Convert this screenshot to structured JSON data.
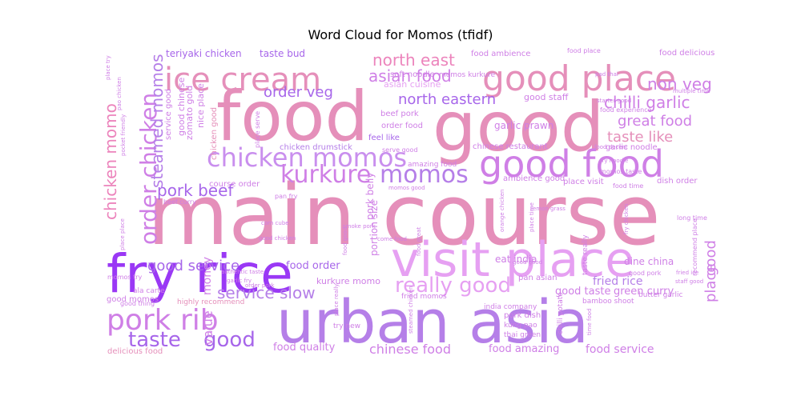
{
  "chart_data": {
    "type": "wordcloud",
    "title": "Word Cloud for Momos (tfidf)",
    "colors": [
      "#e58fba",
      "#cf7fe6",
      "#a766ea",
      "#9a38f5",
      "#c98fee",
      "#e6a0f2",
      "#ec84bc",
      "#b57fe8"
    ],
    "words": [
      {
        "text": "main course",
        "size": 104,
        "color": "#e58fba"
      },
      {
        "text": "food",
        "size": 86,
        "color": "#e58fba"
      },
      {
        "text": "good",
        "size": 86,
        "color": "#e58fba"
      },
      {
        "text": "urban asia",
        "size": 74,
        "color": "#b57fe8"
      },
      {
        "text": "fry rice",
        "size": 66,
        "color": "#9a38f5"
      },
      {
        "text": "visit place",
        "size": 60,
        "color": "#e6a0f2"
      },
      {
        "text": "good food",
        "size": 46,
        "color": "#cf7fe6"
      },
      {
        "text": "good place",
        "size": 44,
        "color": "#e58fba"
      },
      {
        "text": "ice cream",
        "size": 40,
        "color": "#e58fba"
      },
      {
        "text": "pork rib",
        "size": 36,
        "color": "#cf7fe6"
      },
      {
        "text": "chicken momos",
        "size": 32,
        "color": "#c98fee"
      },
      {
        "text": "kurkure",
        "size": 30,
        "color": "#cf7fe6"
      },
      {
        "text": "momos",
        "size": 30,
        "color": "#b57fe8"
      },
      {
        "text": "order chicken",
        "size": 28,
        "color": "#cf7fe6"
      },
      {
        "text": "really good",
        "size": 26,
        "color": "#e6a0f2"
      },
      {
        "text": "taste",
        "size": 26,
        "color": "#a766ea"
      },
      {
        "text": "good",
        "size": 26,
        "color": "#a766ea"
      },
      {
        "text": "chicken momo",
        "size": 20,
        "color": "#ec84bc"
      },
      {
        "text": "steamed momos",
        "size": 20,
        "color": "#b57fe8"
      },
      {
        "text": "pork beef",
        "size": 20,
        "color": "#a766ea"
      },
      {
        "text": "service slow",
        "size": 20,
        "color": "#b57fe8"
      },
      {
        "text": "north east",
        "size": 20,
        "color": "#ec84bc"
      },
      {
        "text": "asian food",
        "size": 20,
        "color": "#cf7fe6"
      },
      {
        "text": "north eastern",
        "size": 18,
        "color": "#a766ea"
      },
      {
        "text": "non veg",
        "size": 20,
        "color": "#cf7fe6"
      },
      {
        "text": "chilli garlic",
        "size": 20,
        "color": "#cf7fe6"
      },
      {
        "text": "great food",
        "size": 18,
        "color": "#cf7fe6"
      },
      {
        "text": "taste like",
        "size": 18,
        "color": "#e58fba"
      },
      {
        "text": "good service",
        "size": 18,
        "color": "#a766ea"
      },
      {
        "text": "order veg",
        "size": 18,
        "color": "#a766ea"
      },
      {
        "text": "chinese food",
        "size": 16,
        "color": "#cf7fe6"
      },
      {
        "text": "place",
        "size": 18,
        "color": "#cf7fe6"
      },
      {
        "text": "good",
        "size": 18,
        "color": "#cf7fe6"
      },
      {
        "text": "value",
        "size": 16,
        "color": "#cf7fe6"
      },
      {
        "text": "money",
        "size": 14,
        "color": "#cf7fe6"
      },
      {
        "text": "food service",
        "size": 14,
        "color": "#cf7fe6"
      },
      {
        "text": "food quality",
        "size": 13,
        "color": "#cf7fe6"
      },
      {
        "text": "food amazing",
        "size": 13,
        "color": "#cf7fe6"
      },
      {
        "text": "fried rice",
        "size": 14,
        "color": "#b57fe8"
      },
      {
        "text": "good taste",
        "size": 13,
        "color": "#cf7fe6"
      },
      {
        "text": "green curry",
        "size": 13,
        "color": "#cf7fe6"
      },
      {
        "text": "food order",
        "size": 13,
        "color": "#a766ea"
      },
      {
        "text": "teriyaki chicken",
        "size": 12,
        "color": "#a766ea"
      },
      {
        "text": "taste bud",
        "size": 12,
        "color": "#a766ea"
      },
      {
        "text": "garlic prawn",
        "size": 12,
        "color": "#cf7fe6"
      },
      {
        "text": "good staff",
        "size": 11,
        "color": "#cf7fe6"
      },
      {
        "text": "asian cuisine",
        "size": 11,
        "color": "#e6a0f2"
      },
      {
        "text": "food ambience",
        "size": 10,
        "color": "#cf7fe6"
      },
      {
        "text": "food delicious",
        "size": 10,
        "color": "#cf7fe6"
      },
      {
        "text": "zomato gold",
        "size": 11,
        "color": "#cf7fe6"
      },
      {
        "text": "nice place",
        "size": 11,
        "color": "#cf7fe6"
      },
      {
        "text": "good chinese",
        "size": 11,
        "color": "#cf7fe6"
      },
      {
        "text": "service good",
        "size": 10,
        "color": "#cf7fe6"
      },
      {
        "text": "chicken good",
        "size": 10,
        "color": "#e58fba"
      },
      {
        "text": "chicken drumstick",
        "size": 10,
        "color": "#b57fe8"
      },
      {
        "text": "feel like",
        "size": 10,
        "color": "#a766ea"
      },
      {
        "text": "chinese restaurant",
        "size": 10,
        "color": "#cf7fe6"
      },
      {
        "text": "amazing food",
        "size": 9,
        "color": "#cf7fe6"
      },
      {
        "text": "ambience good",
        "size": 10,
        "color": "#cf7fe6"
      },
      {
        "text": "place visit",
        "size": 10,
        "color": "#cf7fe6"
      },
      {
        "text": "dish order",
        "size": 10,
        "color": "#cf7fe6"
      },
      {
        "text": "garlic noodle",
        "size": 10,
        "color": "#cf7fe6"
      },
      {
        "text": "course order",
        "size": 10,
        "color": "#cf7fe6"
      },
      {
        "text": "portion size",
        "size": 12,
        "color": "#cf7fe6"
      },
      {
        "text": "pork belly",
        "size": 12,
        "color": "#cf7fe6"
      },
      {
        "text": "eat india",
        "size": 12,
        "color": "#cf7fe6"
      },
      {
        "text": "dine china",
        "size": 12,
        "color": "#cf7fe6"
      },
      {
        "text": "kurkure momo",
        "size": 11,
        "color": "#cf7fe6"
      },
      {
        "text": "pan asian",
        "size": 10,
        "color": "#cf7fe6"
      },
      {
        "text": "good momos",
        "size": 10,
        "color": "#cf7fe6"
      },
      {
        "text": "pork dish",
        "size": 10,
        "color": "#cf7fe6"
      },
      {
        "text": "india company",
        "size": 9,
        "color": "#cf7fe6"
      },
      {
        "text": "chilli potato",
        "size": 9,
        "color": "#cf7fe6"
      },
      {
        "text": "butter garlic",
        "size": 9,
        "color": "#cf7fe6"
      },
      {
        "text": "bamboo shoot",
        "size": 9,
        "color": "#cf7fe6"
      },
      {
        "text": "delicious food",
        "size": 10,
        "color": "#e58fba"
      },
      {
        "text": "highly recommend",
        "size": 9,
        "color": "#e58fba"
      },
      {
        "text": "good thing",
        "size": 8,
        "color": "#cf7fe6"
      },
      {
        "text": "ala carte",
        "size": 9,
        "color": "#cf7fe6"
      },
      {
        "text": "momos try",
        "size": 8,
        "color": "#cf7fe6"
      },
      {
        "text": "try new",
        "size": 9,
        "color": "#cf7fe6"
      },
      {
        "text": "kung pao",
        "size": 9,
        "color": "#cf7fe6"
      },
      {
        "text": "thai green",
        "size": 9,
        "color": "#cf7fe6"
      },
      {
        "text": "fried momos",
        "size": 9,
        "color": "#cf7fe6"
      },
      {
        "text": "order food",
        "size": 10,
        "color": "#cf7fe6"
      },
      {
        "text": "beef pork",
        "size": 10,
        "color": "#cf7fe6"
      },
      {
        "text": "soft noodle",
        "size": 10,
        "color": "#cf7fe6"
      },
      {
        "text": "momos kurkure",
        "size": 9,
        "color": "#cf7fe6"
      },
      {
        "text": "food place",
        "size": 8,
        "color": "#cf7fe6"
      },
      {
        "text": "food experience",
        "size": 8,
        "color": "#cf7fe6"
      },
      {
        "text": "momos taste",
        "size": 8,
        "color": "#cf7fe6"
      },
      {
        "text": "food time",
        "size": 8,
        "color": "#cf7fe6"
      },
      {
        "text": "long time",
        "size": 8,
        "color": "#cf7fe6"
      },
      {
        "text": "recommend place",
        "size": 8,
        "color": "#cf7fe6"
      },
      {
        "text": "good pork",
        "size": 8,
        "color": "#cf7fe6"
      },
      {
        "text": "place serve",
        "size": 8,
        "color": "#cf7fe6"
      },
      {
        "text": "serve good",
        "size": 8,
        "color": "#cf7fe6"
      },
      {
        "text": "pan fry",
        "size": 8,
        "color": "#cf7fe6"
      },
      {
        "text": "beef curry",
        "size": 8,
        "color": "#cf7fe6"
      },
      {
        "text": "place time",
        "size": 7,
        "color": "#cf7fe6"
      },
      {
        "text": "lemon grass",
        "size": 7,
        "color": "#cf7fe6"
      },
      {
        "text": "orange chicken",
        "size": 7,
        "color": "#cf7fe6"
      },
      {
        "text": "smoke pork",
        "size": 7,
        "color": "#cf7fe6"
      },
      {
        "text": "time food",
        "size": 7,
        "color": "#cf7fe6"
      },
      {
        "text": "good good",
        "size": 7,
        "color": "#cf7fe6"
      },
      {
        "text": "fry chicken",
        "size": 7,
        "color": "#cf7fe6"
      },
      {
        "text": "momos good",
        "size": 7,
        "color": "#cf7fe6"
      },
      {
        "text": "pocket friendly",
        "size": 7,
        "color": "#cf7fe6"
      },
      {
        "text": "pao chicken",
        "size": 7,
        "color": "#cf7fe6"
      },
      {
        "text": "place try",
        "size": 7,
        "color": "#cf7fe6"
      },
      {
        "text": "starter good",
        "size": 7,
        "color": "#cf7fe6"
      },
      {
        "text": "food decent",
        "size": 7,
        "color": "#cf7fe6"
      },
      {
        "text": "fry noodle",
        "size": 7,
        "color": "#cf7fe6"
      },
      {
        "text": "place place",
        "size": 7,
        "color": "#cf7fe6"
      },
      {
        "text": "authentic taste",
        "size": 7,
        "color": "#cf7fe6"
      },
      {
        "text": "corn cube",
        "size": 7,
        "color": "#cf7fe6"
      },
      {
        "text": "garlic fry",
        "size": 7,
        "color": "#cf7fe6"
      },
      {
        "text": "order pork",
        "size": 7,
        "color": "#cf7fe6"
      },
      {
        "text": "taste really",
        "size": 9,
        "color": "#cf7fe6"
      },
      {
        "text": "food good",
        "size": 7,
        "color": "#cf7fe6"
      },
      {
        "text": "come food",
        "size": 7,
        "color": "#cf7fe6"
      },
      {
        "text": "place really",
        "size": 7,
        "color": "#cf7fe6"
      },
      {
        "text": "food great",
        "size": 7,
        "color": "#cf7fe6"
      },
      {
        "text": "steamed chicken",
        "size": 7,
        "color": "#cf7fe6"
      },
      {
        "text": "pad thai",
        "size": 7,
        "color": "#cf7fe6"
      },
      {
        "text": "multiple time",
        "size": 7,
        "color": "#cf7fe6"
      },
      {
        "text": "fried ice",
        "size": 7,
        "color": "#cf7fe6"
      },
      {
        "text": "staff good",
        "size": 7,
        "color": "#cf7fe6"
      },
      {
        "text": "good chicken",
        "size": 7,
        "color": "#cf7fe6"
      }
    ]
  }
}
